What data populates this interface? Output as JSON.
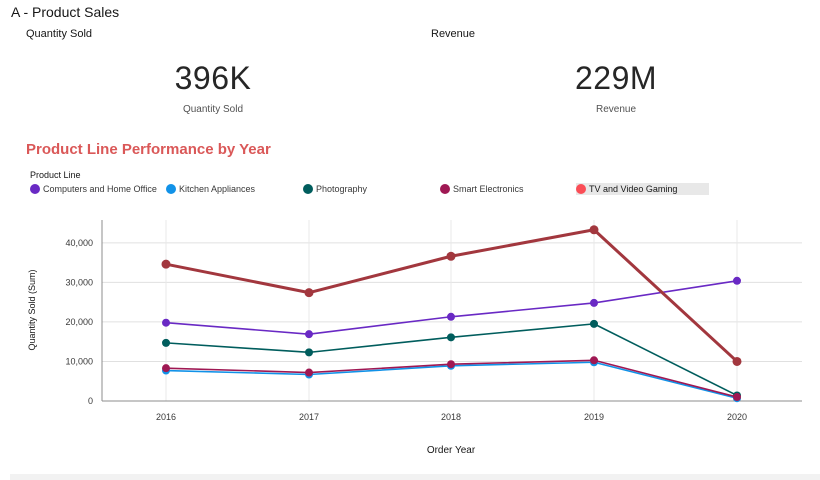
{
  "page": {
    "title": "A - Product Sales"
  },
  "kpis": [
    {
      "label": "Quantity Sold",
      "value": "396K",
      "caption": "Quantity Sold"
    },
    {
      "label": "Revenue",
      "value": "229M",
      "caption": "Revenue"
    }
  ],
  "chart_title": "Product Line Performance by Year",
  "legend": {
    "title": "Product Line",
    "items": [
      {
        "label": "Computers and Home Office",
        "color": "#6929c4"
      },
      {
        "label": "Kitchen Appliances",
        "color": "#1192e8"
      },
      {
        "label": "Photography",
        "color": "#005d5d"
      },
      {
        "label": "Smart Electronics",
        "color": "#9f1853"
      },
      {
        "label": "TV and Video Gaming",
        "color": "#fa4d56",
        "selected": true
      }
    ]
  },
  "chart_data": {
    "type": "line",
    "xlabel": "Order Year",
    "ylabel": "Quantity Sold (Sum)",
    "categories": [
      "2016",
      "2017",
      "2018",
      "2019",
      "2020"
    ],
    "ylim": [
      0,
      44000
    ],
    "yticks": [
      0,
      10000,
      20000,
      30000,
      40000
    ],
    "ytick_labels": [
      "0",
      "10,000",
      "20,000",
      "30,000",
      "40,000"
    ],
    "grid": true,
    "legend_position": "top-left",
    "series": [
      {
        "name": "Computers and Home Office",
        "color": "#6929c4",
        "values": [
          19800,
          16900,
          21300,
          24800,
          30400
        ]
      },
      {
        "name": "Kitchen Appliances",
        "color": "#1192e8",
        "values": [
          7700,
          6700,
          8900,
          9800,
          700
        ]
      },
      {
        "name": "Photography",
        "color": "#005d5d",
        "values": [
          14700,
          12300,
          16100,
          19500,
          1400
        ]
      },
      {
        "name": "Smart Electronics",
        "color": "#9f1853",
        "values": [
          8300,
          7200,
          9300,
          10300,
          1000
        ]
      },
      {
        "name": "TV and Video Gaming",
        "color": "#a2373e",
        "values": [
          34600,
          27400,
          36600,
          43300,
          10000
        ]
      }
    ]
  }
}
